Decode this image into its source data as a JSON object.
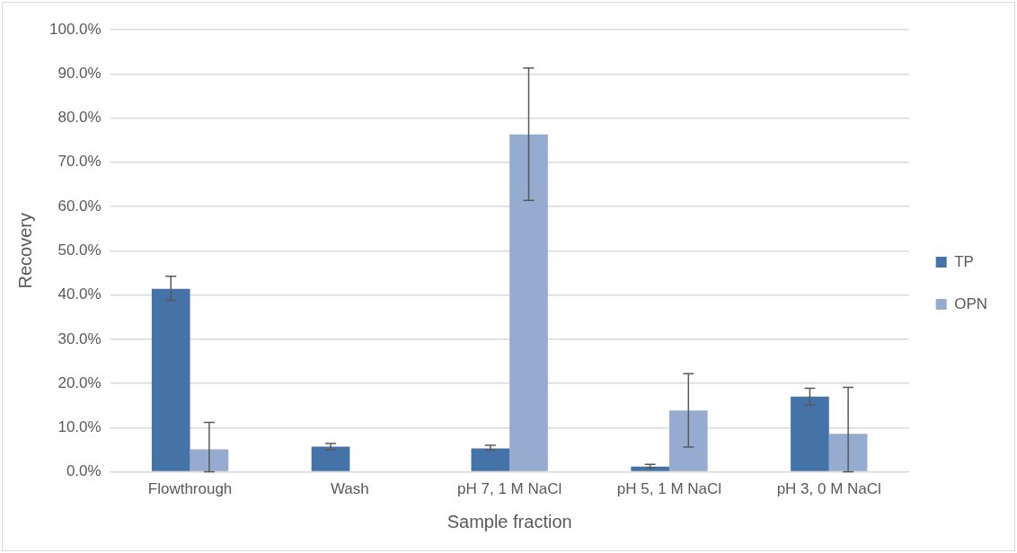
{
  "chart_data": {
    "type": "bar",
    "xlabel": "Sample fraction",
    "ylabel": "Recovery",
    "categories": [
      "Flowthrough",
      "Wash",
      "pH 7, 1 M NaCl",
      "pH 5, 1 M NaCl",
      "pH 3, 0 M NaCl"
    ],
    "series": [
      {
        "name": "TP",
        "color": "#4673a7",
        "values": [
          41.4,
          5.7,
          5.3,
          1.2,
          17.0
        ],
        "errors": [
          [
            38.8,
            44.2
          ],
          [
            5.0,
            6.4
          ],
          [
            4.9,
            6.0
          ],
          [
            0.9,
            1.7
          ],
          [
            15.1,
            18.9
          ]
        ]
      },
      {
        "name": "OPN",
        "color": "#95abd0",
        "values": [
          5.1,
          0,
          76.3,
          13.9,
          8.6
        ],
        "errors": [
          [
            0,
            11.2
          ],
          null,
          [
            61.4,
            91.3
          ],
          [
            5.6,
            22.2
          ],
          [
            0,
            19.1
          ]
        ]
      }
    ],
    "ylim": [
      0,
      100
    ],
    "yticks": [
      {
        "value": 0,
        "label": "0.0%"
      },
      {
        "value": 10,
        "label": "10.0%"
      },
      {
        "value": 20,
        "label": "20.0%"
      },
      {
        "value": 30,
        "label": "30.0%"
      },
      {
        "value": 40,
        "label": "40.0%"
      },
      {
        "value": 50,
        "label": "50.0%"
      },
      {
        "value": 60,
        "label": "60.0%"
      },
      {
        "value": 70,
        "label": "70.0%"
      },
      {
        "value": 80,
        "label": "80.0%"
      },
      {
        "value": 90,
        "label": "90.0%"
      },
      {
        "value": 100,
        "label": "100.0%"
      }
    ],
    "grid": "y",
    "legend": "right"
  }
}
